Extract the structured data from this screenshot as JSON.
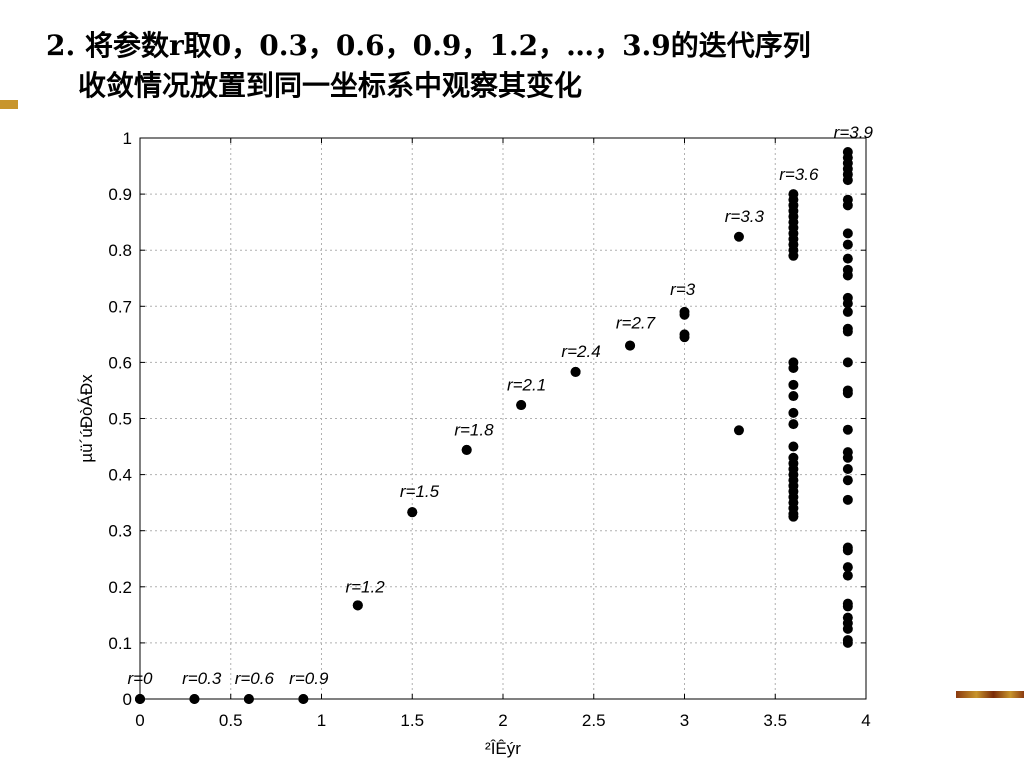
{
  "slide": {
    "title_line1": "2. 将参数r取0，0.3，0.6，0.9，1.2，…，3.9的迭代序列",
    "title_line2": "收敛情况放置到同一坐标系中观察其变化"
  },
  "colors": {
    "accent": "#c8952c",
    "points": "#000000",
    "grid": "#b0b0b0"
  },
  "chart_data": {
    "type": "scatter",
    "title": "",
    "xlabel": "²ÎÊýr",
    "ylabel": "µü´úÐòÁÐx",
    "xlim": [
      0,
      4
    ],
    "ylim": [
      0,
      1
    ],
    "xticks": [
      0,
      0.5,
      1,
      1.5,
      2,
      2.5,
      3,
      3.5,
      4
    ],
    "xtick_labels": [
      "0",
      "0.5",
      "1",
      "1.5",
      "2",
      "2.5",
      "3",
      "3.5",
      "4"
    ],
    "yticks": [
      0,
      0.1,
      0.2,
      0.3,
      0.4,
      0.5,
      0.6,
      0.7,
      0.8,
      0.9,
      1
    ],
    "ytick_labels": [
      "0",
      "0.1",
      "0.2",
      "0.3",
      "0.4",
      "0.5",
      "0.6",
      "0.7",
      "0.8",
      "0.9",
      "1"
    ],
    "grid": true,
    "annotations": [
      {
        "text": "r=0",
        "x": 0,
        "y": 0.027
      },
      {
        "text": "r=0.3",
        "x": 0.34,
        "y": 0.027
      },
      {
        "text": "r=0.6",
        "x": 0.63,
        "y": 0.027
      },
      {
        "text": "r=0.9",
        "x": 0.93,
        "y": 0.027
      },
      {
        "text": "r=1.2",
        "x": 1.24,
        "y": 0.19
      },
      {
        "text": "r=1.5",
        "x": 1.54,
        "y": 0.36
      },
      {
        "text": "r=1.8",
        "x": 1.84,
        "y": 0.47
      },
      {
        "text": "r=2.1",
        "x": 2.13,
        "y": 0.55
      },
      {
        "text": "r=2.4",
        "x": 2.43,
        "y": 0.61
      },
      {
        "text": "r=2.7",
        "x": 2.73,
        "y": 0.66
      },
      {
        "text": "r=3",
        "x": 2.99,
        "y": 0.72
      },
      {
        "text": "r=3.3",
        "x": 3.33,
        "y": 0.85
      },
      {
        "text": "r=3.6",
        "x": 3.63,
        "y": 0.925
      },
      {
        "text": "r=3.9",
        "x": 3.93,
        "y": 1.0
      }
    ],
    "series": [
      {
        "r": 0,
        "x": [
          0,
          0,
          0
        ],
        "y": [
          0,
          0,
          0
        ]
      },
      {
        "r": 0.3,
        "x": [
          0.3,
          0.3
        ],
        "y": [
          0,
          0
        ]
      },
      {
        "r": 0.6,
        "x": [
          0.6,
          0.6
        ],
        "y": [
          0,
          0
        ]
      },
      {
        "r": 0.9,
        "x": [
          0.9,
          0.9
        ],
        "y": [
          0,
          0
        ]
      },
      {
        "r": 1.2,
        "x": [
          1.2,
          1.2
        ],
        "y": [
          0.167,
          0.167
        ]
      },
      {
        "r": 1.5,
        "x": [
          1.5,
          1.5
        ],
        "y": [
          0.333,
          0.333
        ]
      },
      {
        "r": 1.8,
        "x": [
          1.8,
          1.8
        ],
        "y": [
          0.444,
          0.444
        ]
      },
      {
        "r": 2.1,
        "x": [
          2.1,
          2.1
        ],
        "y": [
          0.524,
          0.524
        ]
      },
      {
        "r": 2.4,
        "x": [
          2.4,
          2.4
        ],
        "y": [
          0.583,
          0.583
        ]
      },
      {
        "r": 2.7,
        "x": [
          2.7,
          2.7
        ],
        "y": [
          0.63,
          0.63
        ]
      },
      {
        "r": 3.0,
        "x": [
          3,
          3,
          3,
          3
        ],
        "y": [
          0.69,
          0.685,
          0.65,
          0.645
        ]
      },
      {
        "r": 3.3,
        "x": [
          3.3,
          3.3
        ],
        "y": [
          0.824,
          0.479
        ]
      },
      {
        "r": 3.6,
        "x": [
          3.6,
          3.6,
          3.6,
          3.6,
          3.6,
          3.6,
          3.6,
          3.6,
          3.6,
          3.6,
          3.6,
          3.6,
          3.6,
          3.6,
          3.6,
          3.6,
          3.6,
          3.6,
          3.6,
          3.6,
          3.6,
          3.6,
          3.6,
          3.6,
          3.6,
          3.6,
          3.6,
          3.6,
          3.6,
          3.6,
          3.6
        ],
        "y": [
          0.9,
          0.89,
          0.88,
          0.87,
          0.86,
          0.85,
          0.84,
          0.83,
          0.82,
          0.81,
          0.8,
          0.79,
          0.6,
          0.59,
          0.56,
          0.54,
          0.51,
          0.49,
          0.45,
          0.43,
          0.42,
          0.41,
          0.4,
          0.39,
          0.38,
          0.37,
          0.36,
          0.35,
          0.34,
          0.33,
          0.325
        ]
      },
      {
        "r": 3.9,
        "x": [
          3.9,
          3.9,
          3.9,
          3.9,
          3.9,
          3.9,
          3.9,
          3.9,
          3.9,
          3.9,
          3.9,
          3.9,
          3.9,
          3.9,
          3.9,
          3.9,
          3.9,
          3.9,
          3.9,
          3.9,
          3.9,
          3.9,
          3.9,
          3.9,
          3.9,
          3.9,
          3.9,
          3.9,
          3.9,
          3.9,
          3.9,
          3.9,
          3.9,
          3.9,
          3.9,
          3.9,
          3.9,
          3.9
        ],
        "y": [
          0.975,
          0.965,
          0.955,
          0.945,
          0.935,
          0.925,
          0.89,
          0.88,
          0.83,
          0.81,
          0.785,
          0.765,
          0.755,
          0.715,
          0.705,
          0.69,
          0.66,
          0.655,
          0.6,
          0.55,
          0.545,
          0.48,
          0.44,
          0.43,
          0.41,
          0.39,
          0.355,
          0.27,
          0.265,
          0.235,
          0.22,
          0.17,
          0.165,
          0.145,
          0.135,
          0.125,
          0.105,
          0.1
        ]
      }
    ]
  }
}
